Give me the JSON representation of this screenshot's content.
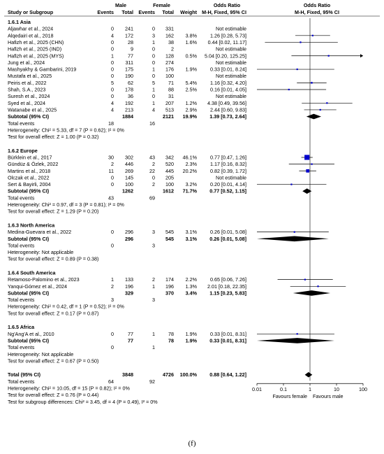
{
  "chart_data": {
    "type": "forest",
    "scale": "log",
    "xlim": [
      0.01,
      100
    ],
    "x_ticks": [
      "0.01",
      "0.1",
      "1",
      "10",
      "100"
    ],
    "favours_left": "Favours female",
    "favours_right": "Favours male",
    "headers": {
      "study": "Study or Subgroup",
      "group1": "Male",
      "group2": "Female",
      "events": "Events",
      "total": "Total",
      "weight": "Weight",
      "or_text": "Odds Ratio",
      "or_text_sub": "M-H, Fixed, 95% CI",
      "or_plot": "Odds Ratio",
      "or_plot_sub": "M-H, Fixed, 95% CI"
    },
    "subgroups": [
      {
        "title": "1.6.1 Asia",
        "studies": [
          {
            "name": "Aljawhar et al., 2024",
            "e1": "0",
            "t1": "241",
            "e2": "0",
            "t2": "331",
            "w": "",
            "ci": "Not estimable",
            "or": null,
            "lo": null,
            "hi": null
          },
          {
            "name": "Alqedairi et al., 2018",
            "e1": "4",
            "t1": "172",
            "e2": "3",
            "t2": "162",
            "w": "3.8%",
            "ci": "1.26 [0.28, 5.73]",
            "or": 1.26,
            "lo": 0.28,
            "hi": 5.73
          },
          {
            "name": "Hafizh et al., 2025 (CHN)",
            "e1": "0",
            "t1": "28",
            "e2": "1",
            "t2": "38",
            "w": "1.6%",
            "ci": "0.44 [0.02, 11.17]",
            "or": 0.44,
            "lo": 0.02,
            "hi": 11.17
          },
          {
            "name": "Hafizh et al., 2025 (IND)",
            "e1": "0",
            "t1": "9",
            "e2": "0",
            "t2": "2",
            "w": "",
            "ci": "Not estimable",
            "or": null,
            "lo": null,
            "hi": null
          },
          {
            "name": "Hafizh et al., 2025 (MYS)",
            "e1": "1",
            "t1": "77",
            "e2": "0",
            "t2": "128",
            "w": "0.5%",
            "ci": "5.04 [0.20, 125.25]",
            "or": 5.04,
            "lo": 0.2,
            "hi": 125.25
          },
          {
            "name": "Jung et al., 2024",
            "e1": "0",
            "t1": "311",
            "e2": "0",
            "t2": "274",
            "w": "",
            "ci": "Not estimable",
            "or": null,
            "lo": null,
            "hi": null
          },
          {
            "name": "Mashyakhy & Gambarini, 2019",
            "e1": "0",
            "t1": "175",
            "e2": "1",
            "t2": "176",
            "w": "1.9%",
            "ci": "0.33 [0.01, 8.24]",
            "or": 0.33,
            "lo": 0.01,
            "hi": 8.24
          },
          {
            "name": "Mustafa et al., 2025",
            "e1": "0",
            "t1": "190",
            "e2": "0",
            "t2": "100",
            "w": "",
            "ci": "Not estimable",
            "or": null,
            "lo": null,
            "hi": null
          },
          {
            "name": "Peiris et al., 2022",
            "e1": "5",
            "t1": "62",
            "e2": "5",
            "t2": "71",
            "w": "5.4%",
            "ci": "1.16 [0.32, 4.20]",
            "or": 1.16,
            "lo": 0.32,
            "hi": 4.2
          },
          {
            "name": "Shah, S.A., 2023",
            "e1": "0",
            "t1": "178",
            "e2": "1",
            "t2": "88",
            "w": "2.5%",
            "ci": "0.16 [0.01, 4.05]",
            "or": 0.16,
            "lo": 0.01,
            "hi": 4.05
          },
          {
            "name": "Suresh et al., 2024",
            "e1": "0",
            "t1": "36",
            "e2": "0",
            "t2": "31",
            "w": "",
            "ci": "Not estimable",
            "or": null,
            "lo": null,
            "hi": null
          },
          {
            "name": "Syed et al., 2024",
            "e1": "4",
            "t1": "192",
            "e2": "1",
            "t2": "207",
            "w": "1.2%",
            "ci": "4.38 [0.49, 39.56]",
            "or": 4.38,
            "lo": 0.49,
            "hi": 39.56
          },
          {
            "name": "Watanabe et al., 2025",
            "e1": "4",
            "t1": "213",
            "e2": "4",
            "t2": "513",
            "w": "2.9%",
            "ci": "2.44 [0.60, 9.83]",
            "or": 2.44,
            "lo": 0.6,
            "hi": 9.83
          }
        ],
        "subtotal": {
          "label": "Subtotal (95% CI)",
          "t1": "1884",
          "t2": "2121",
          "w": "19.9%",
          "ci": "1.39 [0.73, 2.64]",
          "or": 1.39,
          "lo": 0.73,
          "hi": 2.64
        },
        "events": {
          "label": "Total events",
          "e1": "18",
          "e2": "16"
        },
        "heterogeneity": "Heterogeneity: Chi² = 5.33, df = 7 (P = 0.62); I² = 0%",
        "overall": "Test for overall effect: Z = 1.00 (P = 0.32)"
      },
      {
        "title": "1.6.2 Europe",
        "studies": [
          {
            "name": "Bürklein et al., 2017",
            "e1": "30",
            "t1": "302",
            "e2": "43",
            "t2": "342",
            "w": "46.1%",
            "ci": "0.77 [0.47, 1.26]",
            "or": 0.77,
            "lo": 0.47,
            "hi": 1.26
          },
          {
            "name": "Gündüz & Özlek, 2022",
            "e1": "2",
            "t1": "446",
            "e2": "2",
            "t2": "520",
            "w": "2.3%",
            "ci": "1.17 [0.16, 8.32]",
            "or": 1.17,
            "lo": 0.16,
            "hi": 8.32
          },
          {
            "name": "Martins et al., 2018",
            "e1": "11",
            "t1": "269",
            "e2": "22",
            "t2": "445",
            "w": "20.2%",
            "ci": "0.82 [0.39, 1.72]",
            "or": 0.82,
            "lo": 0.39,
            "hi": 1.72
          },
          {
            "name": "Olczak et al., 2022",
            "e1": "0",
            "t1": "145",
            "e2": "0",
            "t2": "205",
            "w": "",
            "ci": "Not estimable",
            "or": null,
            "lo": null,
            "hi": null
          },
          {
            "name": "Sert & Bayirli, 2004",
            "e1": "0",
            "t1": "100",
            "e2": "2",
            "t2": "100",
            "w": "3.2%",
            "ci": "0.20 [0.01, 4.14]",
            "or": 0.2,
            "lo": 0.01,
            "hi": 4.14
          }
        ],
        "subtotal": {
          "label": "Subtotal (95% CI)",
          "t1": "1262",
          "t2": "1612",
          "w": "71.7%",
          "ci": "0.77 [0.52, 1.15]",
          "or": 0.77,
          "lo": 0.52,
          "hi": 1.15
        },
        "events": {
          "label": "Total events",
          "e1": "43",
          "e2": "69"
        },
        "heterogeneity": "Heterogeneity: Chi² = 0.97, df = 3 (P = 0.81); I² = 0%",
        "overall": "Test for overall effect: Z = 1.29 (P = 0.20)"
      },
      {
        "title": "1.6.3 North America",
        "studies": [
          {
            "name": "Medina-Guevara et al., 2022",
            "e1": "0",
            "t1": "296",
            "e2": "3",
            "t2": "545",
            "w": "3.1%",
            "ci": "0.26 [0.01, 5.08]",
            "or": 0.26,
            "lo": 0.01,
            "hi": 5.08
          }
        ],
        "subtotal": {
          "label": "Subtotal (95% CI)",
          "t1": "296",
          "t2": "545",
          "w": "3.1%",
          "ci": "0.26 [0.01, 5.08]",
          "or": 0.26,
          "lo": 0.01,
          "hi": 5.08
        },
        "events": {
          "label": "Total events",
          "e1": "0",
          "e2": "3"
        },
        "heterogeneity": "Heterogeneity: Not applicable",
        "overall": "Test for overall effect: Z = 0.89 (P = 0.38)"
      },
      {
        "title": "1.6.4 South America",
        "studies": [
          {
            "name": "Retamoso-Palomino et al., 2023",
            "e1": "1",
            "t1": "133",
            "e2": "2",
            "t2": "174",
            "w": "2.2%",
            "ci": "0.65 [0.06, 7.26]",
            "or": 0.65,
            "lo": 0.06,
            "hi": 7.26
          },
          {
            "name": "Yanqui-Gómez et al., 2024",
            "e1": "2",
            "t1": "196",
            "e2": "1",
            "t2": "196",
            "w": "1.3%",
            "ci": "2.01 [0.18, 22.35]",
            "or": 2.01,
            "lo": 0.18,
            "hi": 22.35
          }
        ],
        "subtotal": {
          "label": "Subtotal (95% CI)",
          "t1": "329",
          "t2": "370",
          "w": "3.4%",
          "ci": "1.15 [0.23, 5.83]",
          "or": 1.15,
          "lo": 0.23,
          "hi": 5.83
        },
        "events": {
          "label": "Total events",
          "e1": "3",
          "e2": "3"
        },
        "heterogeneity": "Heterogeneity: Chi² = 0.42, df = 1 (P = 0.52); I² = 0%",
        "overall": "Test for overall effect: Z = 0.17 (P = 0.87)"
      },
      {
        "title": "1.6.5 Africa",
        "studies": [
          {
            "name": "Ng'Ang'A et al., 2010",
            "e1": "0",
            "t1": "77",
            "e2": "1",
            "t2": "78",
            "w": "1.9%",
            "ci": "0.33 [0.01, 8.31]",
            "or": 0.33,
            "lo": 0.01,
            "hi": 8.31
          }
        ],
        "subtotal": {
          "label": "Subtotal (95% CI)",
          "t1": "77",
          "t2": "78",
          "w": "1.9%",
          "ci": "0.33 [0.01, 8.31]",
          "or": 0.33,
          "lo": 0.01,
          "hi": 8.31
        },
        "events": {
          "label": "Total events",
          "e1": "0",
          "e2": "1"
        },
        "heterogeneity": "Heterogeneity: Not applicable",
        "overall": "Test for overall effect: Z = 0.67 (P = 0.50)"
      }
    ],
    "total": {
      "label": "Total (95% CI)",
      "t1": "3848",
      "t2": "4726",
      "w": "100.0%",
      "ci": "0.88 [0.64, 1.22]",
      "or": 0.88,
      "lo": 0.64,
      "hi": 1.22
    },
    "total_events": {
      "label": "Total events",
      "e1": "64",
      "e2": "92"
    },
    "total_heterogeneity": "Heterogeneity: Chi² = 10.05, df = 15 (P = 0.82); I² = 0%",
    "total_overall": "Test for overall effect: Z = 0.76 (P = 0.44)",
    "subgroup_differences": "Test for subgroup differences: Chi² = 3.45, df = 4 (P = 0.49), I² = 0%",
    "colors": {
      "square": "#0000cc",
      "diamond": "#000000",
      "rule": "#555555"
    }
  },
  "caption": "(f)"
}
